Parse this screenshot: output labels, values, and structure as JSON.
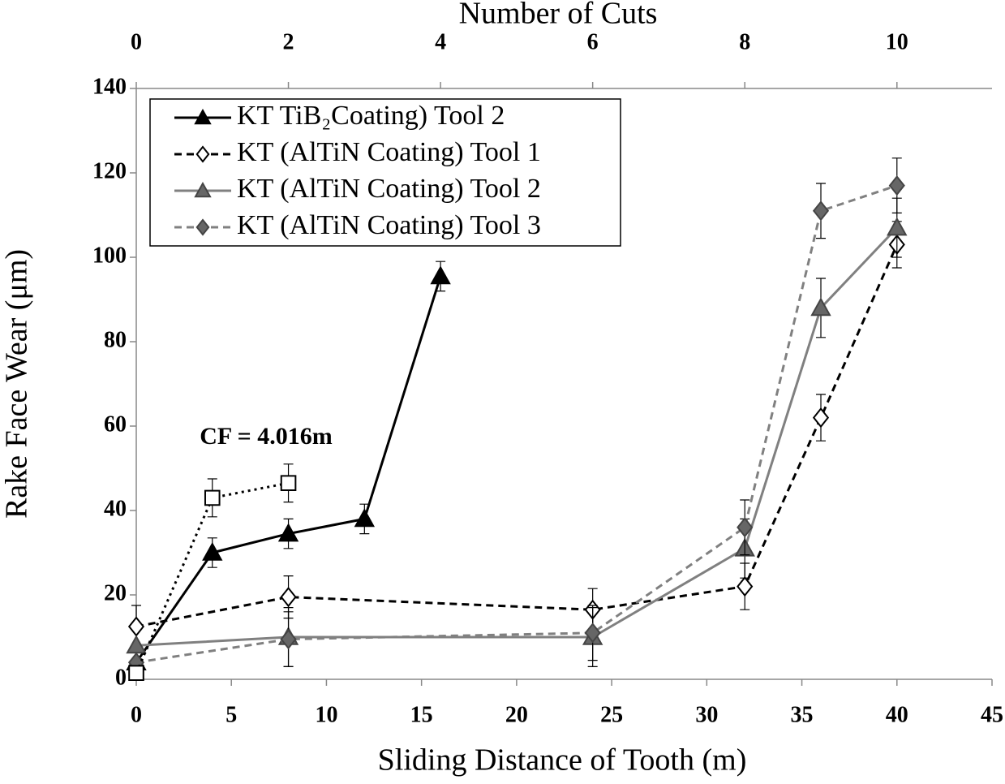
{
  "chart_data": {
    "type": "line",
    "xlabel": "Sliding Distance of Tooth (m)",
    "ylabel": "Rake Face Wear (μm)",
    "x2label": "Number of Cuts",
    "xlim": [
      0,
      45
    ],
    "xticks": [
      0,
      5,
      10,
      15,
      20,
      25,
      30,
      35,
      40,
      45
    ],
    "x2lim": [
      0,
      11.25
    ],
    "x2ticks": [
      0,
      2,
      4,
      6,
      8,
      10
    ],
    "ylim": [
      0,
      140
    ],
    "yticks": [
      0,
      20,
      40,
      60,
      80,
      100,
      120,
      140
    ],
    "annotation": "CF = 4.016m",
    "legend": "upper left",
    "series": [
      {
        "name": "KT TiB₂Coating) Tool 2",
        "color": "#000000",
        "marker": "triangle",
        "marker_fill": "#000000",
        "dash": "solid",
        "x": [
          0,
          4,
          8,
          12,
          16
        ],
        "values": [
          4,
          30,
          34.5,
          38,
          95.5
        ],
        "errors": [
          null,
          3.5,
          3.5,
          3.5,
          3.5
        ]
      },
      {
        "name": "KT (AlTiN Coating) Tool 1",
        "color": "#000000",
        "marker": "diamond",
        "marker_fill": "#ffffff",
        "dash": "dashed",
        "x": [
          0,
          8,
          24,
          32,
          36,
          40
        ],
        "values": [
          12.5,
          19.5,
          16.5,
          22,
          62,
          103
        ],
        "errors": [
          5,
          5,
          5,
          5.5,
          5.5,
          5.5
        ]
      },
      {
        "name": "KT (AlTiN Coating) Tool 2",
        "color": "#808080",
        "marker": "triangle",
        "marker_fill": "#666666",
        "dash": "solid",
        "x": [
          0,
          8,
          24,
          32,
          36,
          40
        ],
        "values": [
          8,
          10,
          10,
          31,
          88,
          107
        ],
        "errors": [
          null,
          7,
          7,
          7,
          7,
          7
        ]
      },
      {
        "name": "KT (AlTiN Coating) Tool 3",
        "color": "#808080",
        "marker": "diamond",
        "marker_fill": "#666666",
        "dash": "dashed",
        "x": [
          0,
          8,
          24,
          32,
          36,
          40
        ],
        "values": [
          4,
          9.5,
          11,
          36,
          111,
          117
        ],
        "errors": [
          null,
          6.5,
          6.5,
          6.5,
          6.5,
          6.5
        ]
      },
      {
        "color": "#000000",
        "marker": "square",
        "marker_fill": "#ffffff",
        "dash": "dotted",
        "x": [
          0,
          4,
          8
        ],
        "values": [
          1.5,
          43,
          46.5
        ],
        "errors": [
          null,
          4.5,
          4.5
        ]
      }
    ]
  }
}
